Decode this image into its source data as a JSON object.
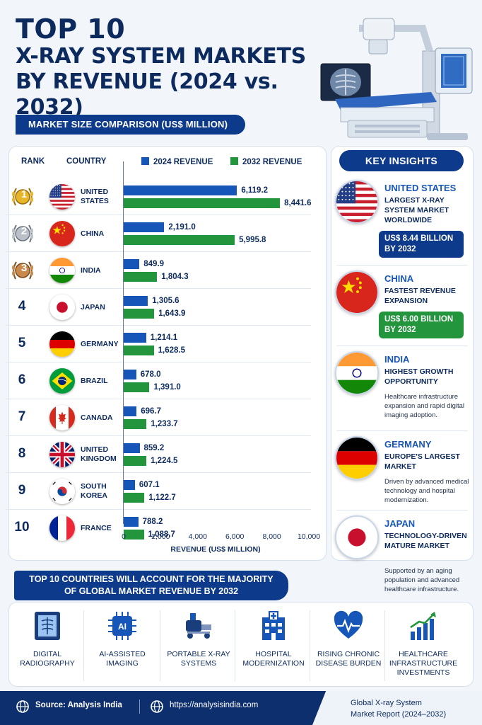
{
  "header": {
    "title_line1": "TOP 10",
    "title_line2": "X-RAY SYSTEM MARKETS",
    "title_line3": "BY REVENUE (2024 vs. 2032)",
    "subtitle": "MARKET SIZE COMPARISON (US$ MILLION)"
  },
  "colors": {
    "navy": "#0e3a8c",
    "blue_2024": "#1656b8",
    "green_2032": "#23963d"
  },
  "chart_data": {
    "type": "bar",
    "orientation": "horizontal",
    "columns": {
      "rank": "RANK",
      "country": "COUNTRY"
    },
    "categories": [
      "UNITED STATES",
      "CHINA",
      "INDIA",
      "JAPAN",
      "GERMANY",
      "BRAZIL",
      "CANADA",
      "UNITED KINGDOM",
      "SOUTH KOREA",
      "FRANCE"
    ],
    "category_lines": [
      [
        "UNITED",
        "STATES"
      ],
      [
        "CHINA"
      ],
      [
        "INDIA"
      ],
      [
        "JAPAN"
      ],
      [
        "GERMANY"
      ],
      [
        "BRAZIL"
      ],
      [
        "CANADA"
      ],
      [
        "UNITED",
        "KINGDOM"
      ],
      [
        "SOUTH",
        "KOREA"
      ],
      [
        "FRANCE"
      ]
    ],
    "ranks": [
      "1",
      "2",
      "3",
      "4",
      "5",
      "6",
      "7",
      "8",
      "9",
      "10"
    ],
    "series": [
      {
        "name": "2024 REVENUE",
        "values": [
          6119.2,
          2191.0,
          849.9,
          1305.6,
          1214.1,
          678.0,
          696.7,
          859.2,
          607.1,
          788.2
        ],
        "labels": [
          "6,119.2",
          "2,191.0",
          "849.9",
          "1,305.6",
          "1,214.1",
          "678.0",
          "696.7",
          "859.2",
          "607.1",
          "788.2"
        ]
      },
      {
        "name": "2032 REVENUE",
        "values": [
          8441.6,
          5995.8,
          1804.3,
          1643.9,
          1628.5,
          1391.0,
          1233.7,
          1224.5,
          1122.7,
          1088.7
        ],
        "labels": [
          "8,441.6",
          "5,995.8",
          "1,804.3",
          "1,643.9",
          "1,628.5",
          "1,391.0",
          "1,233.7",
          "1,224.5",
          "1,122.7",
          "1,088.7"
        ]
      }
    ],
    "xlim": [
      0,
      10000
    ],
    "xticks": [
      "0",
      "2,000",
      "4,000",
      "6,000",
      "8,000",
      "10,000"
    ],
    "xlabel": "REVENUE (US$ MILLION)",
    "legend": "top",
    "grid": false
  },
  "insights": {
    "title": "KEY INSIGHTS",
    "items": [
      {
        "country": "UNITED STATES",
        "headline": "LARGEST X-RAY SYSTEM MARKET WORLDWIDE",
        "box": "US$ 8.44 BILLION BY 2032",
        "flag": "flag-us"
      },
      {
        "country": "CHINA",
        "headline": "FASTEST REVENUE EXPANSION",
        "box": "US$ 6.00 BILLION BY 2032",
        "flag": "flag-cn"
      },
      {
        "country": "INDIA",
        "headline": "HIGHEST GROWTH OPPORTUNITY",
        "desc": "Healthcare infrastructure expansion and rapid digital imaging adoption.",
        "flag": "flag-in"
      },
      {
        "country": "GERMANY",
        "headline": "EUROPE'S LARGEST MARKET",
        "desc": "Driven by advanced medical technology and hospital modernization.",
        "flag": "flag-de"
      },
      {
        "country": "JAPAN",
        "headline": "TECHNOLOGY-DRIVEN MATURE MARKET",
        "desc": "Supported by an aging population and advanced healthcare infrastructure.",
        "flag": "flag-jp"
      }
    ]
  },
  "drivers": {
    "banner_line1": "TOP 10 COUNTRIES WILL ACCOUNT FOR THE MAJORITY",
    "banner_line2": "OF GLOBAL MARKET REVENUE BY 2032",
    "items": [
      {
        "label": "DIGITAL RADIOGRAPHY",
        "icon": "xray-film-icon"
      },
      {
        "label": "AI-ASSISTED IMAGING",
        "icon": "ai-chip-icon"
      },
      {
        "label": "PORTABLE X-RAY SYSTEMS",
        "icon": "portable-xray-icon"
      },
      {
        "label": "HOSPITAL MODERNIZATION",
        "icon": "hospital-icon"
      },
      {
        "label": "RISING CHRONIC DISEASE BURDEN",
        "icon": "heart-pulse-icon"
      },
      {
        "label": "HEALTHCARE INFRASTRUCTURE INVESTMENTS",
        "icon": "growth-chart-icon"
      }
    ]
  },
  "footer": {
    "source": "Source: Analysis India",
    "url": "https://analysisindia.com",
    "report_line1": "Global X-ray System",
    "report_line2": "Market Report (2024–2032)"
  }
}
